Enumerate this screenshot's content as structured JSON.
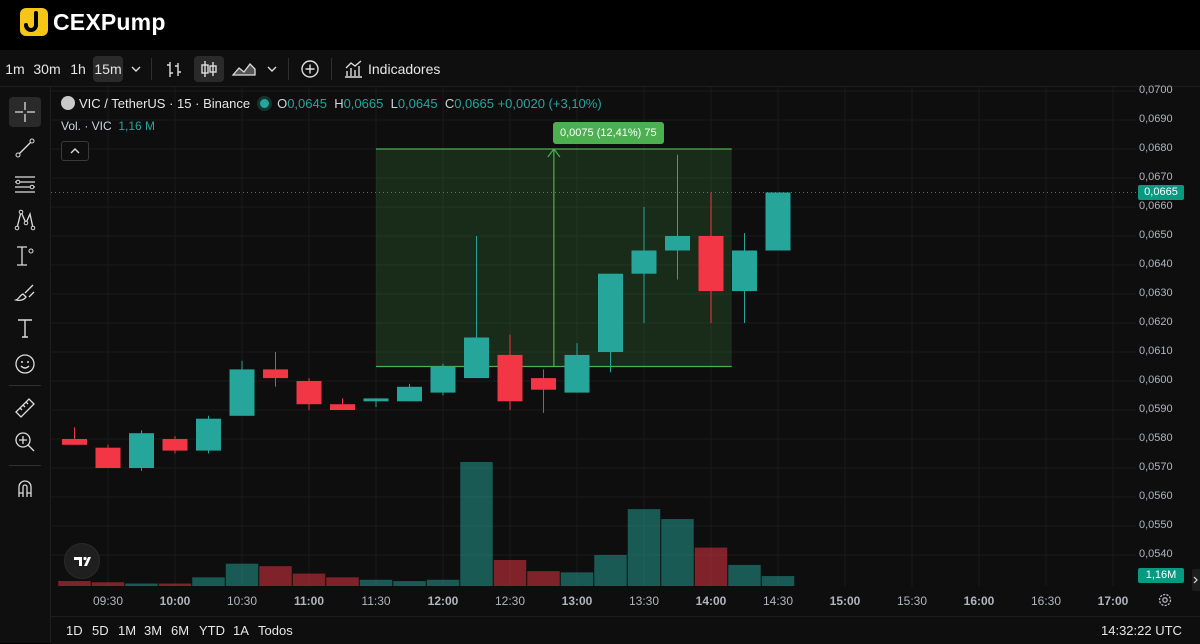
{
  "app": {
    "name": "CEXPump"
  },
  "toolbar": {
    "intervals": [
      "1m",
      "30m",
      "1h",
      "15m"
    ],
    "selected_interval": "15m",
    "indicators_label": "Indicadores"
  },
  "legend": {
    "symbol": "VIC",
    "pair": "TetherUS",
    "interval": "15",
    "exchange": "Binance",
    "open_label": "O",
    "open": "0,0645",
    "high_label": "H",
    "high": "0,0665",
    "low_label": "L",
    "low": "0,0645",
    "close_label": "C",
    "close": "0,0665",
    "change": "+0,0020 (+3,10%)",
    "volume_label": "Vol. · VIC",
    "volume_value": "1,16 M"
  },
  "measure": {
    "label": "0,0075 (12,41%) 75"
  },
  "price_axis": {
    "ticks": [
      "0,0700",
      "0,0690",
      "0,0680",
      "0,0670",
      "0,0660",
      "0,0650",
      "0,0640",
      "0,0630",
      "0,0620",
      "0,0610",
      "0,0600",
      "0,0590",
      "0,0580",
      "0,0570",
      "0,0560",
      "0,0550",
      "0,0540"
    ],
    "last_price": "0,0665",
    "volume_tag": "1,16M"
  },
  "time_axis": {
    "ticks": [
      "09:30",
      "10:00",
      "10:30",
      "11:00",
      "11:30",
      "12:00",
      "12:30",
      "13:00",
      "13:30",
      "14:00",
      "14:30",
      "15:00",
      "15:30",
      "16:00",
      "16:30",
      "17:00"
    ]
  },
  "bottom_bar": {
    "ranges": [
      "1D",
      "5D",
      "1M",
      "3M",
      "6M",
      "YTD",
      "1A",
      "Todos"
    ],
    "clock": "14:32:22 UTC"
  },
  "colors": {
    "up": "#26a69a",
    "down": "#f23645",
    "measure": "#4caf50",
    "price_tag": "#089981"
  },
  "chart_data": {
    "type": "candlestick",
    "ylim": [
      0.0535,
      0.07
    ],
    "x": [
      "09:15",
      "09:30",
      "09:45",
      "10:00",
      "10:15",
      "10:30",
      "10:45",
      "11:00",
      "11:15",
      "11:30",
      "11:45",
      "12:00",
      "12:15",
      "12:30",
      "12:45",
      "13:00",
      "13:15",
      "13:30",
      "13:45",
      "14:00",
      "14:15",
      "14:30"
    ],
    "open": [
      0.058,
      0.0577,
      0.057,
      0.058,
      0.0576,
      0.0588,
      0.0604,
      0.06,
      0.0592,
      0.0593,
      0.0593,
      0.0596,
      0.0601,
      0.0609,
      0.0601,
      0.0596,
      0.061,
      0.0637,
      0.0645,
      0.065,
      0.0631,
      0.0645
    ],
    "high": [
      0.0584,
      0.0578,
      0.0583,
      0.0581,
      0.0588,
      0.0607,
      0.061,
      0.0601,
      0.0594,
      0.0594,
      0.0599,
      0.0606,
      0.065,
      0.0616,
      0.0604,
      0.0613,
      0.0637,
      0.066,
      0.0678,
      0.0665,
      0.0651,
      0.0665
    ],
    "low": [
      0.0578,
      0.057,
      0.0569,
      0.0575,
      0.0575,
      0.0588,
      0.0598,
      0.059,
      0.059,
      0.0591,
      0.0593,
      0.0595,
      0.0602,
      0.059,
      0.0589,
      0.0596,
      0.0603,
      0.062,
      0.0635,
      0.062,
      0.062,
      0.0645
    ],
    "close": [
      0.0578,
      0.057,
      0.0582,
      0.0576,
      0.0587,
      0.0604,
      0.0601,
      0.0592,
      0.059,
      0.0594,
      0.0598,
      0.0605,
      0.0615,
      0.0593,
      0.0597,
      0.0609,
      0.0637,
      0.0645,
      0.065,
      0.0631,
      0.0645,
      0.0665
    ],
    "volume_relative": [
      0.04,
      0.03,
      0.02,
      0.02,
      0.07,
      0.18,
      0.16,
      0.1,
      0.07,
      0.05,
      0.04,
      0.05,
      1.0,
      0.21,
      0.12,
      0.11,
      0.25,
      0.62,
      0.54,
      0.31,
      0.17,
      0.08
    ],
    "measure_range": {
      "from_time": "11:30",
      "to_time": "14:00",
      "from_price": 0.0605,
      "to_price": 0.068
    },
    "last_price": 0.0665
  }
}
